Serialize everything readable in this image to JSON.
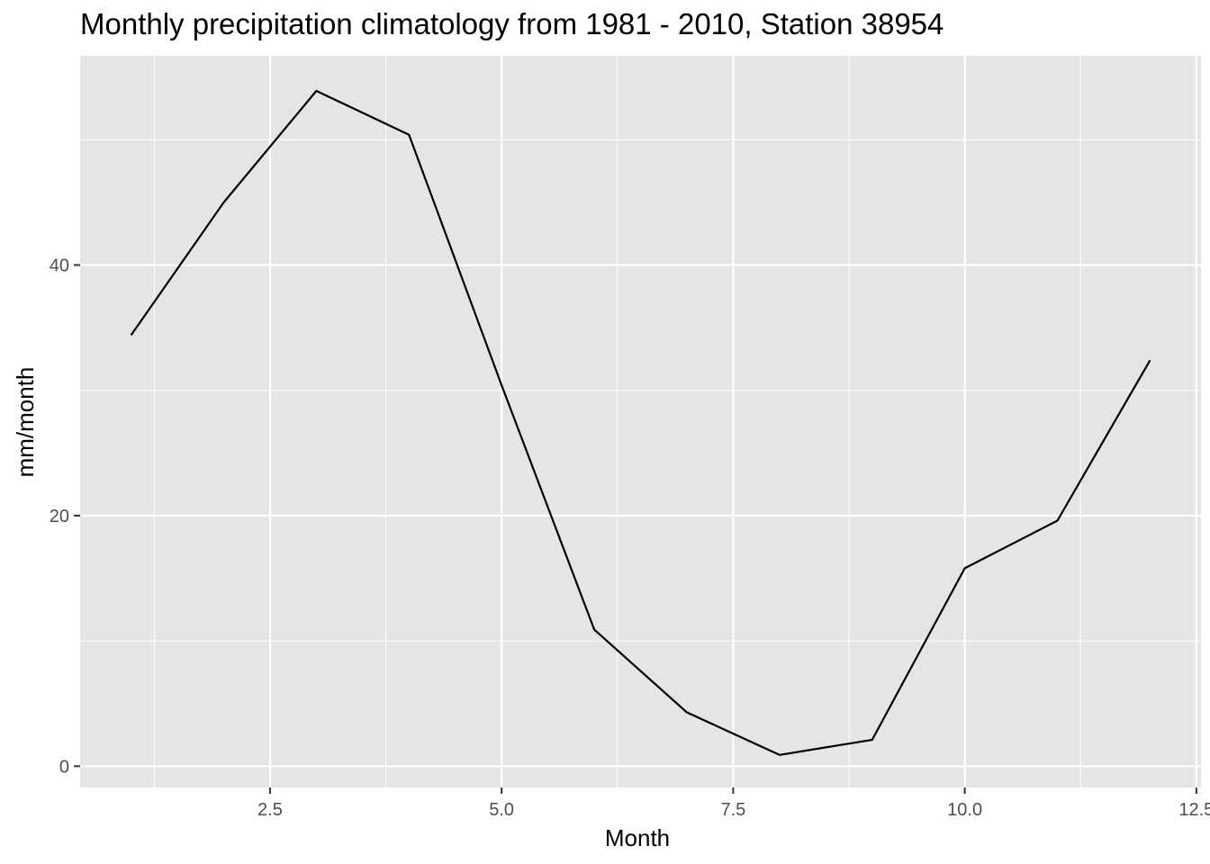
{
  "chart_data": {
    "type": "line",
    "title": "Monthly precipitation climatology from 1981 - 2010, Station 38954",
    "xlabel": "Month",
    "ylabel": "mm/month",
    "xlim": [
      0.45,
      12.55
    ],
    "ylim": [
      -1.7,
      56.7
    ],
    "x_ticks": [
      2.5,
      5.0,
      7.5,
      10.0,
      12.5
    ],
    "x_tick_labels": [
      "2.5",
      "5.0",
      "7.5",
      "10.0",
      "12.5"
    ],
    "y_ticks": [
      0,
      20,
      40
    ],
    "y_tick_labels": [
      "0",
      "20",
      "40"
    ],
    "x_minor_ticks": [
      1.25,
      3.75,
      6.25,
      8.75,
      11.25
    ],
    "y_minor_ticks": [
      10,
      30,
      50
    ],
    "grid": true,
    "panel_background": "#e5e5e5",
    "grid_color": "#ffffff",
    "line_color": "#000000",
    "series": [
      {
        "x": [
          1,
          2,
          3,
          4,
          5,
          6,
          7,
          8,
          9,
          10,
          11,
          12
        ],
        "values": [
          34.4,
          45.0,
          53.9,
          50.4,
          30.4,
          10.9,
          4.3,
          0.9,
          2.1,
          15.8,
          19.6,
          32.4
        ]
      }
    ]
  }
}
